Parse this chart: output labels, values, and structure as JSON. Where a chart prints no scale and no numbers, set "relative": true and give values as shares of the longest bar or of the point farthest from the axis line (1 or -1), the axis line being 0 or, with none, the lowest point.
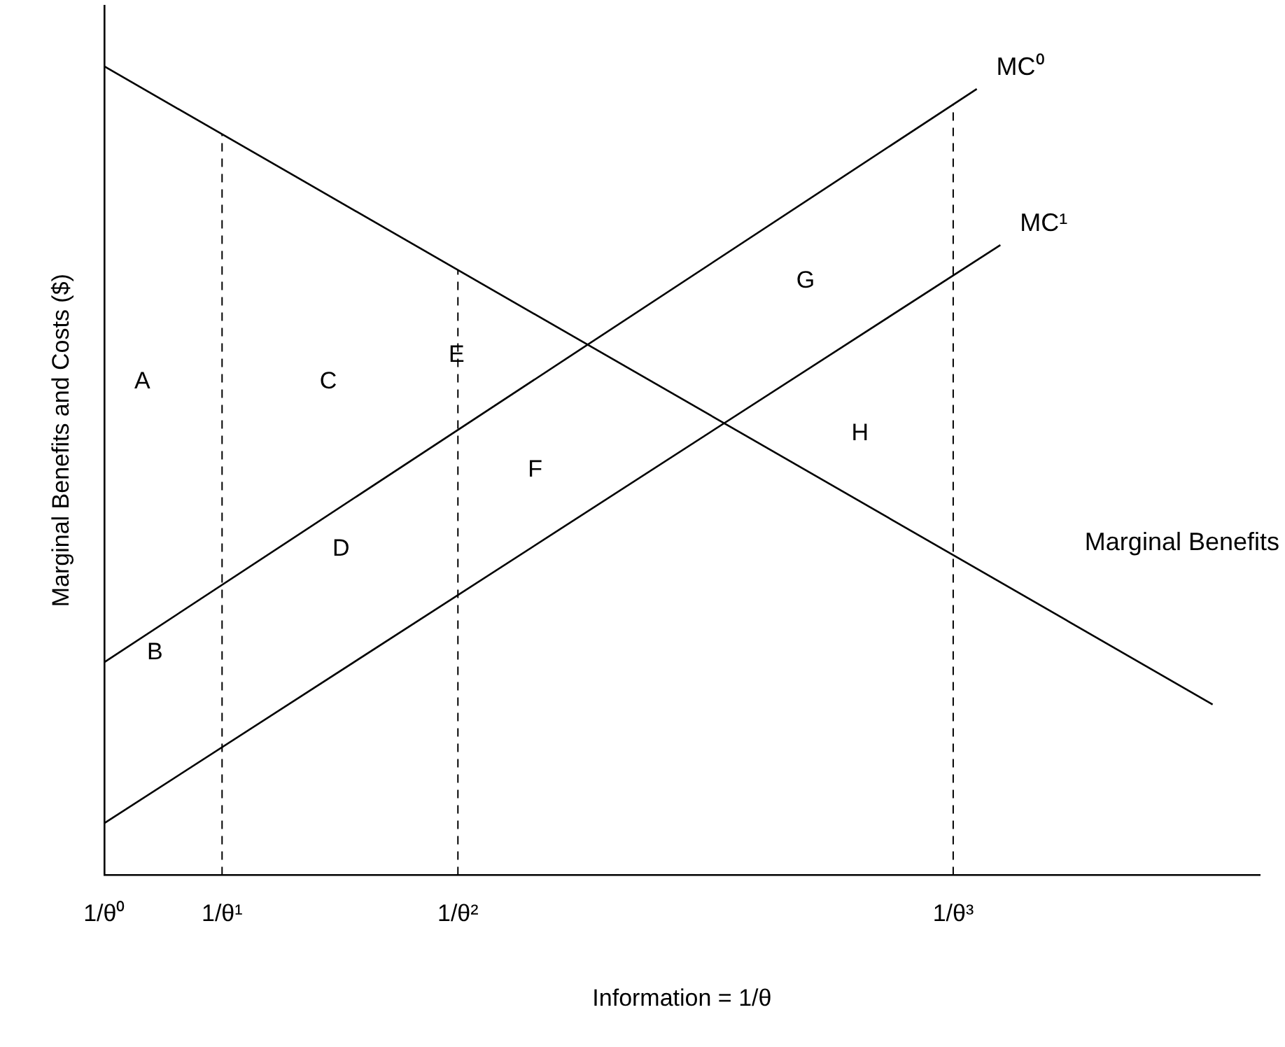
{
  "chart_data": {
    "type": "line",
    "relative": true,
    "xlabel": "Information = 1/θ",
    "ylabel": "Marginal Benefits and Costs ($)",
    "categories": [
      "1/θ⁰",
      null,
      null,
      null,
      null,
      "1/θ¹",
      null,
      null,
      null,
      null,
      null,
      null,
      null,
      null,
      null,
      "1/θ²",
      null,
      null,
      null,
      null,
      null,
      null,
      null,
      null,
      null,
      null,
      null,
      null,
      null,
      null,
      null,
      null,
      null,
      null,
      null,
      null,
      "1/θ³",
      null,
      null,
      null,
      null,
      null,
      null,
      null,
      null,
      null,
      null,
      null,
      null,
      null
    ],
    "series": [
      {
        "name": "Marginal Benefits",
        "color": "#000000",
        "values": [
          1,
          null,
          null,
          null,
          null,
          null,
          null,
          null,
          null,
          null,
          null,
          null,
          null,
          null,
          null,
          null,
          null,
          null,
          null,
          null,
          null,
          null,
          null,
          null,
          null,
          null,
          null,
          null,
          null,
          null,
          null,
          null,
          null,
          null,
          null,
          null,
          null,
          null,
          null,
          null,
          null,
          null,
          null,
          null,
          null,
          null,
          null,
          0.211,
          null,
          null
        ]
      },
      {
        "name": "MC⁰",
        "color": "#000000",
        "values": [
          0.263,
          null,
          null,
          null,
          null,
          null,
          null,
          null,
          null,
          null,
          null,
          null,
          null,
          null,
          null,
          null,
          null,
          null,
          null,
          null,
          null,
          null,
          null,
          null,
          null,
          null,
          null,
          null,
          null,
          null,
          null,
          null,
          null,
          null,
          null,
          null,
          null,
          0.972,
          null,
          null,
          null,
          null,
          null,
          null,
          null,
          null,
          null,
          null,
          null,
          null
        ]
      },
      {
        "name": "MC¹",
        "color": "#000000",
        "values": [
          0.064,
          null,
          null,
          null,
          null,
          null,
          null,
          null,
          null,
          null,
          null,
          null,
          null,
          null,
          null,
          null,
          null,
          null,
          null,
          null,
          null,
          null,
          null,
          null,
          null,
          null,
          null,
          null,
          null,
          null,
          null,
          null,
          null,
          null,
          null,
          null,
          null,
          null,
          0.779,
          null,
          null,
          null,
          null,
          null,
          null,
          null,
          null,
          null,
          null,
          null
        ]
      }
    ],
    "ref_lines": [
      {
        "axis": "x",
        "value": "1/θ¹",
        "line_style": "dashed",
        "color": "#000000"
      },
      {
        "axis": "x",
        "value": "1/θ²",
        "line_style": "dashed",
        "color": "#000000"
      },
      {
        "axis": "x",
        "value": "1/θ³",
        "line_style": "dashed",
        "color": "#000000"
      }
    ],
    "annotations": [
      "A",
      "C",
      "E",
      "B",
      "D",
      "F",
      "G",
      "H"
    ],
    "grid": false,
    "legend": false,
    "marker": "none",
    "line_style": "solid"
  }
}
